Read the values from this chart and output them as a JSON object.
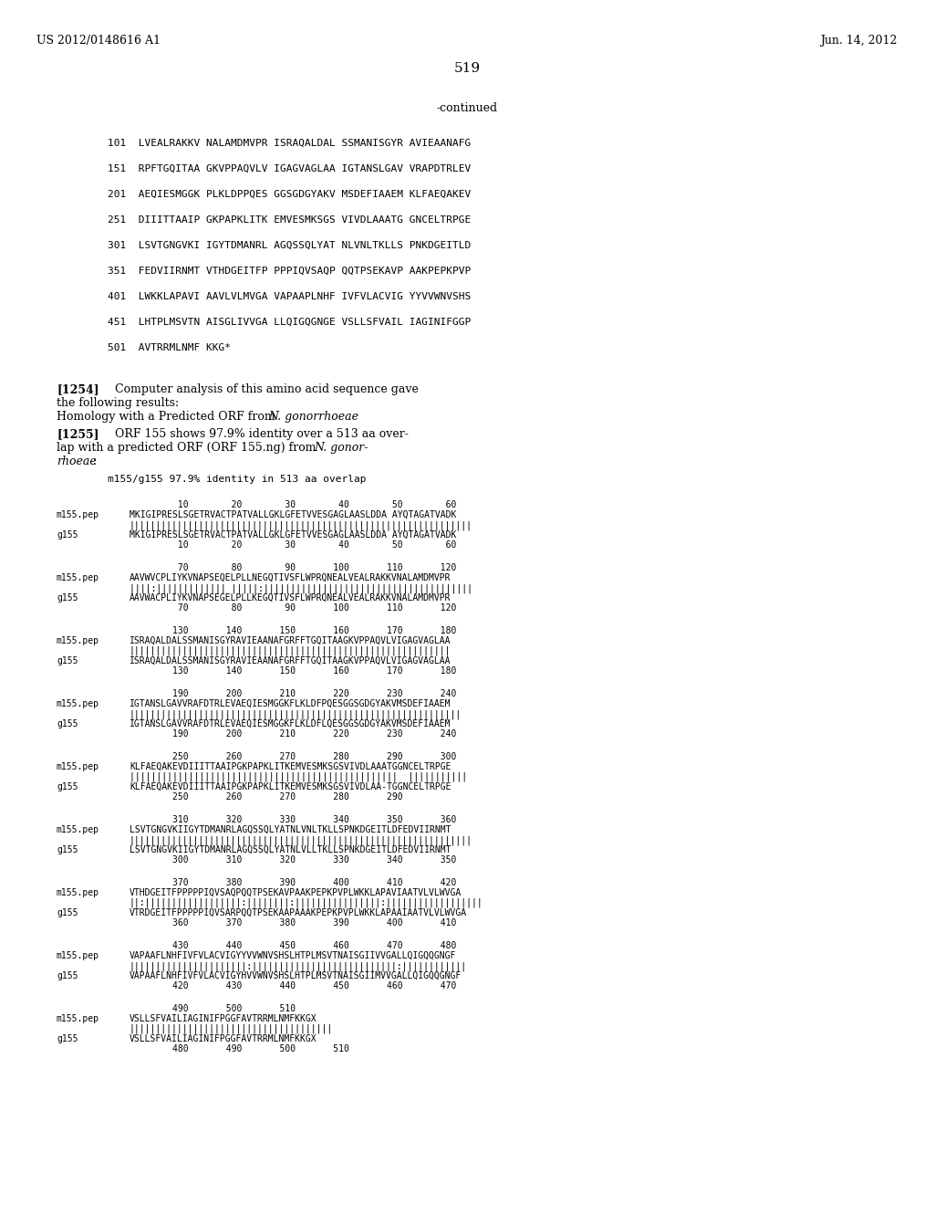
{
  "page_number": "519",
  "patent_number": "US 2012/0148616 A1",
  "patent_date": "Jun. 14, 2012",
  "background_color": "#ffffff",
  "text_color": "#000000",
  "continued_label": "-continued",
  "sequence_lines": [
    "101  LVEALRAKKV NALAMDMVPR ISRAQALDAL SSMANISGYR AVIEAANAFG",
    "151  RPFTGQITAA GKVPPAQVLV IGAGVAGLAA IGTANSLGAV VRAPDTRLEV",
    "201  AEQIESMGGK PLKLDPPQES GGSGDGYAKV MSDEFIAAEM KLFAEQAKEV",
    "251  DIIITTAAIP GKPAPKLITK EMVESMKSGS VIVDLAAATG GNCELTRPGE",
    "301  LSVTGNGVKI IGYTDMANRL AGQSSQLYAT NLVNLTKLLS PNKDGEITLD",
    "351  FEDVIIRNMT VTHDGEITFP PPPIQVSAQP QQTPSEKAVP AAKPEPKPVP",
    "401  LWKKLAPAVI AAVLVLMVGA VAPAAPLNHF IVFVLACVIG YYVVWNVSHS",
    "451  LHTPLMSVTN AISGLIVVGA LLQIGQGNGE VSLLSFVAIL IAGINIFGGP",
    "501  AVTRRMLNMF KKG*"
  ],
  "para1254_lines": [
    {
      "bold": "[1254]",
      "normal": "   Computer analysis of this amino acid sequence gave"
    },
    {
      "bold": "",
      "normal": "the following results:"
    },
    {
      "bold": "",
      "normal": "Homology with a Predicted ORF from ",
      "italic": "N. gonorrhoeae"
    }
  ],
  "para1255_lines": [
    {
      "bold": "[1255]",
      "normal": "   ORF 155 shows 97.9% identity over a 513 aa over-"
    },
    {
      "bold": "",
      "normal": "lap with a predicted ORF (ORF 155.ng) from ",
      "italic": "N. gonor-"
    },
    {
      "bold": "",
      "italic": "rhoeae",
      "normal": ":"
    }
  ],
  "alignment_title": "m155/g155 97.9% identity in 513 aa overlap",
  "blocks": [
    {
      "nums_top": "         10        20        30        40        50        60",
      "seq1_label": "m155.pep",
      "seq1": "MKIGIPRESLSGETRVACTPATVALLGKLGFETVVESGAGLAASLDDA AYQTAGATVADK",
      "bars": "||||||||||||||||||||||||||||||||||||||||||||||||||||||||||||||||",
      "seq2_label": "g155",
      "seq2": "MKIGIPRESLSGETRVACTPATVALLGKLGFETVVESGAGLAASLDDA AYQTAGATVADK",
      "nums_bot": "         10        20        30        40        50        60"
    },
    {
      "nums_top": "         70        80        90       100       110       120",
      "seq1_label": "m155.pep",
      "seq1": "AAVWVCPLIYKVNAPSEQELPLLNEGQTIVSFLWPRQNEALVEALRAKKVNALAMDMVPR",
      "bars": "||||:||||||||||||| |||||:|||||||||||||||||||||||||||||||||||||||",
      "seq2_label": "g155",
      "seq2": "AAVWACPLIYKVNAPSEGELPLLKEGQTIVSFLWPRQNEALVEALRAKKVNALAMDMVPR",
      "nums_bot": "         70        80        90       100       110       120"
    },
    {
      "nums_top": "        130       140       150       160       170       180",
      "seq1_label": "m155.pep",
      "seq1": "ISRAQALDALSSMANISGYRAVIEAANAFGRFFTGQITAAGKVPPAQVLVIGAGVAGLAA",
      "bars": "||||||||||||||||||||||||||||||||||||||||||||||||||||||||||||",
      "seq2_label": "g155",
      "seq2": "ISRAQALDALSSMANISGYRAVIEAANAFGRFFTGQITAAGKVPPAQVLVIGAGVAGLAA",
      "nums_bot": "        130       140       150       160       170       180"
    },
    {
      "nums_top": "        190       200       210       220       230       240",
      "seq1_label": "m155.pep",
      "seq1": "IGTANSLGAVVRAFDTRLEVAEQIESMGGKFLKLDFPQESGGSGDGYAKVMSDEFIAAEM",
      "bars": "||||||||||||||||||||||||||||||||||||||||||||||||||||||||||||||",
      "seq2_label": "g155",
      "seq2": "IGTANSLGAVVRAFDTRLEVAEQIESMGGKFLKLDFLQESGGSGDGYAKVMSDEFIAAEM",
      "nums_bot": "        190       200       210       220       230       240"
    },
    {
      "nums_top": "        250       260       270       280       290       300",
      "seq1_label": "m155.pep",
      "seq1": "KLFAEQAKEVDIIITTAAIPGKPAPKLITKEMVESMKSGSVIVDLAAATGGNCELTRPGE",
      "bars": "||||||||||||||||||||||||||||||||||||||||||||||||||  |||||||||||",
      "seq2_label": "g155",
      "seq2": "KLFAEQAKEVDIIITTAAIPGKPAPKLITKEMVESMKSGSVIVDLAA-TGGNCELTRPGE",
      "nums_bot": "        250       260       270       280       290"
    },
    {
      "nums_top": "        310       320       330       340       350       360",
      "seq1_label": "m155.pep",
      "seq1": "LSVTGNGVKIIGYTDMANRLAGQSSQLYATNLVNLTKLLSPNKDGEITLDFEDVIIRNMT",
      "bars": "||||||||||||||||||||||||||||||||||||||||||||||||||||||||||||||||",
      "seq2_label": "g155",
      "seq2": "LSVTGNGVKIIGYTDMANRLAGQSSQLYATNLVLLTKLLSPNKDGEITLDFEDVIIRNMT",
      "nums_bot": "        300       310       320       330       340       350"
    },
    {
      "nums_top": "        370       380       390       400       410       420",
      "seq1_label": "m155.pep",
      "seq1": "VTHDGEITFPPPPPIQVSAQPQQTPSEKAVPAAKPEPKPVPLWKKLAPAVIAATVLVLWVGA",
      "bars": "||:||||||||||||||||||:||||||||:||||||||||||||||:||||||||||||||||||",
      "seq2_label": "g155",
      "seq2": "VTRDGEITFPPPPPIQVSARPQQTPSEKAAPAAAKPEPKPVPLWKKLAPAAIAATVLVLWVGA",
      "nums_bot": "        360       370       380       390       400       410"
    },
    {
      "nums_top": "        430       440       450       460       470       480",
      "seq1_label": "m155.pep",
      "seq1": "VAPAAFLNHFIVFVLACVIGYYVVWNVSHSLHTPLMSVTNAISGIIVVGALLQIGQQGNGF",
      "bars": "||||||||||||||||||||||:|||||||||||||||||||||||||||:||||||||||||",
      "seq2_label": "g155",
      "seq2": "VAPAAFLNHFIVFVLACVIGYHVVWNVSHSLHTPLMSVTNAISGIIMVVGALLQIGQQGNGF",
      "nums_bot": "        420       430       440       450       460       470"
    },
    {
      "nums_top": "        490       500       510",
      "seq1_label": "m155.pep",
      "seq1": "VSLLSFVAILIAGINIFPGGFAVTRRMLNMFKKGX",
      "bars": "||||||||||||||||||||||||||||||||||||||",
      "seq2_label": "g155",
      "seq2": "VSLLSFVAILIAGINIFPGGFAVTRRMLNMFKKGX",
      "nums_bot": "        480       490       500       510"
    }
  ]
}
